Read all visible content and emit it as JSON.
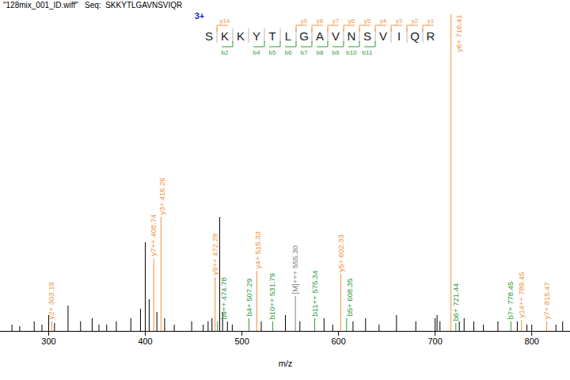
{
  "chart_data": {
    "type": "spectrum",
    "title": "\"128mix_001_ID.wiff\"   Seq:  SKKYTLGAVNSVIQR",
    "x_label": "m/z",
    "xlim": [
      250,
      840
    ],
    "xticks": [
      300,
      400,
      500,
      600,
      700,
      800
    ],
    "ylim": [
      0,
      100
    ],
    "tick_labels": "x",
    "color": "#000000",
    "peptide": {
      "charge": "3+",
      "sequence": "SKKYTLGAVNSVIQR",
      "charge_color": "#1a1acc",
      "y_color": "#f4913e",
      "b_color": "#2f9a3a",
      "y_ions": [
        {
          "label": "y14",
          "n": 14
        },
        {
          "label": "y9",
          "n": 9
        },
        {
          "label": "y8",
          "n": 8
        },
        {
          "label": "y7",
          "n": 7
        },
        {
          "label": "y6",
          "n": 6
        },
        {
          "label": "y5",
          "n": 5
        },
        {
          "label": "y4",
          "n": 4
        },
        {
          "label": "y3",
          "n": 3
        },
        {
          "label": "y2",
          "n": 2
        },
        {
          "label": "y1",
          "n": 1
        }
      ],
      "b_ions": [
        {
          "label": "b2",
          "n": 2
        },
        {
          "label": "b4",
          "n": 4
        },
        {
          "label": "b5",
          "n": 5
        },
        {
          "label": "b6",
          "n": 6
        },
        {
          "label": "b7",
          "n": 7
        },
        {
          "label": "b8",
          "n": 8
        },
        {
          "label": "b9",
          "n": 9
        },
        {
          "label": "b10",
          "n": 10
        },
        {
          "label": "b11",
          "n": 11
        }
      ]
    },
    "peaks": [
      {
        "mz": 303.19,
        "intensity": 3,
        "label": "y2+ 303.19",
        "color": "#f4913e"
      },
      {
        "mz": 408.74,
        "intensity": 23,
        "label": "y7++ 408.74",
        "color": "#f4913e"
      },
      {
        "mz": 416.26,
        "intensity": 36,
        "label": "y3+ 416.26",
        "color": "#f4913e"
      },
      {
        "mz": 472.28,
        "intensity": 17,
        "label": "y9++ 472.28",
        "color": "#f4913e"
      },
      {
        "mz": 474.78,
        "intensity": 3,
        "label": "b9++ 474.78",
        "color": "#2f9a3a"
      },
      {
        "mz": 507.29,
        "intensity": 4,
        "label": "b4+ 507.29",
        "color": "#2f9a3a"
      },
      {
        "mz": 515.33,
        "intensity": 19,
        "label": "y4+ 515.33",
        "color": "#f4913e"
      },
      {
        "mz": 531.79,
        "intensity": 3,
        "label": "b10++ 531.79",
        "color": "#2f9a3a"
      },
      {
        "mz": 555.3,
        "intensity": 11,
        "label": "[M]+++ 555.30",
        "color": "#808080"
      },
      {
        "mz": 575.34,
        "intensity": 4,
        "label": "b11++ 575.34",
        "color": "#2f9a3a"
      },
      {
        "mz": 602.33,
        "intensity": 18,
        "label": "y5+ 602.33",
        "color": "#f4913e"
      },
      {
        "mz": 608.35,
        "intensity": 4,
        "label": "b5+ 608.35",
        "color": "#2f9a3a"
      },
      {
        "mz": 716.41,
        "intensity": 100,
        "label": "y6+ 716.41",
        "color": "#f4913e"
      },
      {
        "mz": 721.44,
        "intensity": 2.5,
        "label": "b6+ 721.44",
        "color": "#2f9a3a"
      },
      {
        "mz": 778.45,
        "intensity": 3,
        "label": "b7+ 778.45",
        "color": "#2f9a3a"
      },
      {
        "mz": 789.45,
        "intensity": 3.5,
        "label": "y14++ 789.45",
        "color": "#f4913e"
      },
      {
        "mz": 815.47,
        "intensity": 3,
        "label": "y7+ 815.47",
        "color": "#f4913e"
      },
      {
        "mz": 262,
        "intensity": 2
      },
      {
        "mz": 270,
        "intensity": 1.5
      },
      {
        "mz": 285,
        "intensity": 3
      },
      {
        "mz": 293,
        "intensity": 2
      },
      {
        "mz": 300,
        "intensity": 5
      },
      {
        "mz": 306,
        "intensity": 2.5
      },
      {
        "mz": 320,
        "intensity": 8
      },
      {
        "mz": 333,
        "intensity": 3
      },
      {
        "mz": 345,
        "intensity": 4
      },
      {
        "mz": 352,
        "intensity": 2
      },
      {
        "mz": 360,
        "intensity": 2
      },
      {
        "mz": 370,
        "intensity": 3
      },
      {
        "mz": 385,
        "intensity": 4
      },
      {
        "mz": 395,
        "intensity": 7
      },
      {
        "mz": 400,
        "intensity": 28
      },
      {
        "mz": 404,
        "intensity": 10
      },
      {
        "mz": 412,
        "intensity": 6
      },
      {
        "mz": 420,
        "intensity": 4
      },
      {
        "mz": 430,
        "intensity": 2
      },
      {
        "mz": 448,
        "intensity": 3
      },
      {
        "mz": 460,
        "intensity": 2
      },
      {
        "mz": 465,
        "intensity": 3
      },
      {
        "mz": 469,
        "intensity": 4
      },
      {
        "mz": 477,
        "intensity": 36
      },
      {
        "mz": 480,
        "intensity": 6
      },
      {
        "mz": 485,
        "intensity": 3
      },
      {
        "mz": 490,
        "intensity": 2
      },
      {
        "mz": 520,
        "intensity": 3
      },
      {
        "mz": 545,
        "intensity": 5
      },
      {
        "mz": 560,
        "intensity": 3
      },
      {
        "mz": 585,
        "intensity": 4
      },
      {
        "mz": 594,
        "intensity": 2
      },
      {
        "mz": 615,
        "intensity": 3
      },
      {
        "mz": 628,
        "intensity": 4
      },
      {
        "mz": 642,
        "intensity": 2
      },
      {
        "mz": 660,
        "intensity": 5
      },
      {
        "mz": 680,
        "intensity": 3
      },
      {
        "mz": 700,
        "intensity": 4
      },
      {
        "mz": 702,
        "intensity": 5
      },
      {
        "mz": 705,
        "intensity": 3
      },
      {
        "mz": 725,
        "intensity": 3
      },
      {
        "mz": 730,
        "intensity": 4
      },
      {
        "mz": 740,
        "intensity": 3
      },
      {
        "mz": 750,
        "intensity": 2
      },
      {
        "mz": 765,
        "intensity": 3
      },
      {
        "mz": 785,
        "intensity": 3
      },
      {
        "mz": 795,
        "intensity": 2
      },
      {
        "mz": 800,
        "intensity": 2
      },
      {
        "mz": 825,
        "intensity": 2
      },
      {
        "mz": 832,
        "intensity": 3
      }
    ]
  }
}
